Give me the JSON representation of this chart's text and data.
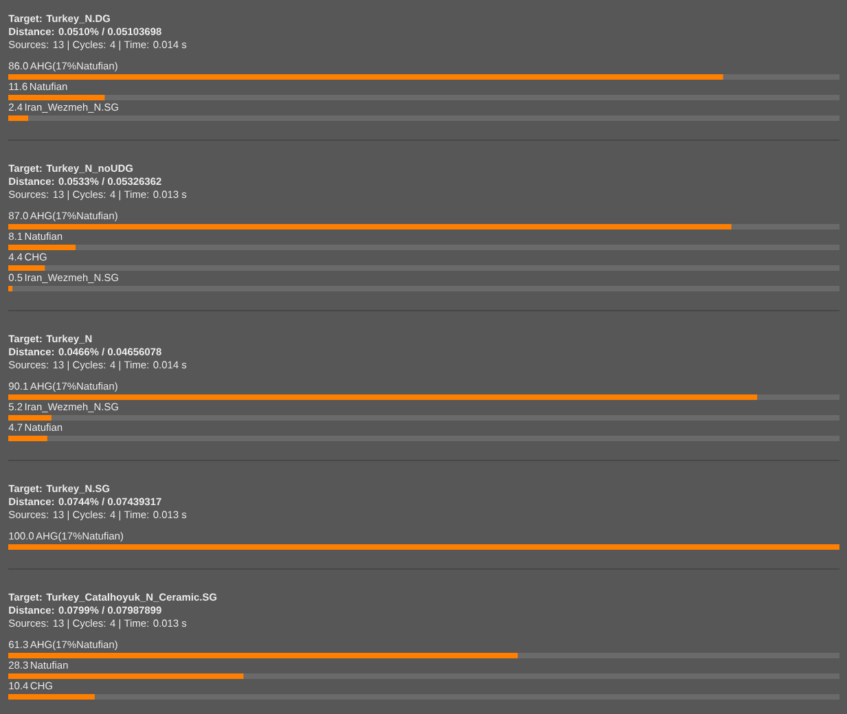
{
  "chart_data": [
    {
      "type": "bar",
      "orientation": "horizontal",
      "title": "Target: Turkey_N.DG",
      "subtitle": "Distance: 0.0510% / 0.05103698",
      "annotations": [
        "Sources: 13 | Cycles: 4 | Time: 0.014 s"
      ],
      "categories": [
        "AHG(17%Natufian)",
        "Natufian",
        "Iran_Wezmeh_N.SG"
      ],
      "values": [
        86.0,
        11.6,
        2.4
      ],
      "value_labels": [
        "86.0",
        "11.6",
        "2.4"
      ],
      "color": "#ff8000"
    },
    {
      "type": "bar",
      "orientation": "horizontal",
      "title": "Target: Turkey_N_noUDG",
      "subtitle": "Distance: 0.0533% / 0.05326362",
      "annotations": [
        "Sources: 13 | Cycles: 4 | Time: 0.013 s"
      ],
      "categories": [
        "AHG(17%Natufian)",
        "Natufian",
        "CHG",
        "Iran_Wezmeh_N.SG"
      ],
      "values": [
        87.0,
        8.1,
        4.4,
        0.5
      ],
      "value_labels": [
        "87.0",
        "8.1",
        "4.4",
        "0.5"
      ],
      "color": "#ff8000"
    },
    {
      "type": "bar",
      "orientation": "horizontal",
      "title": "Target: Turkey_N",
      "subtitle": "Distance: 0.0466% / 0.04656078",
      "annotations": [
        "Sources: 13 | Cycles: 4 | Time: 0.014 s"
      ],
      "categories": [
        "AHG(17%Natufian)",
        "Iran_Wezmeh_N.SG",
        "Natufian"
      ],
      "values": [
        90.1,
        5.2,
        4.7
      ],
      "value_labels": [
        "90.1",
        "5.2",
        "4.7"
      ],
      "color": "#ff8000"
    },
    {
      "type": "bar",
      "orientation": "horizontal",
      "title": "Target: Turkey_N.SG",
      "subtitle": "Distance: 0.0744% / 0.07439317",
      "annotations": [
        "Sources: 13 | Cycles: 4 | Time: 0.013 s"
      ],
      "categories": [
        "AHG(17%Natufian)"
      ],
      "values": [
        100.0
      ],
      "value_labels": [
        "100.0"
      ],
      "color": "#ff8000"
    },
    {
      "type": "bar",
      "orientation": "horizontal",
      "title": "Target: Turkey_Catalhoyuk_N_Ceramic.SG",
      "subtitle": "Distance: 0.0799% / 0.07987899",
      "annotations": [
        "Sources: 13 | Cycles: 4 | Time: 0.013 s"
      ],
      "categories": [
        "AHG(17%Natufian)",
        "Natufian",
        "CHG"
      ],
      "values": [
        61.3,
        28.3,
        10.4
      ],
      "value_labels": [
        "61.3",
        "28.3",
        "10.4"
      ],
      "color": "#ff8000"
    }
  ]
}
